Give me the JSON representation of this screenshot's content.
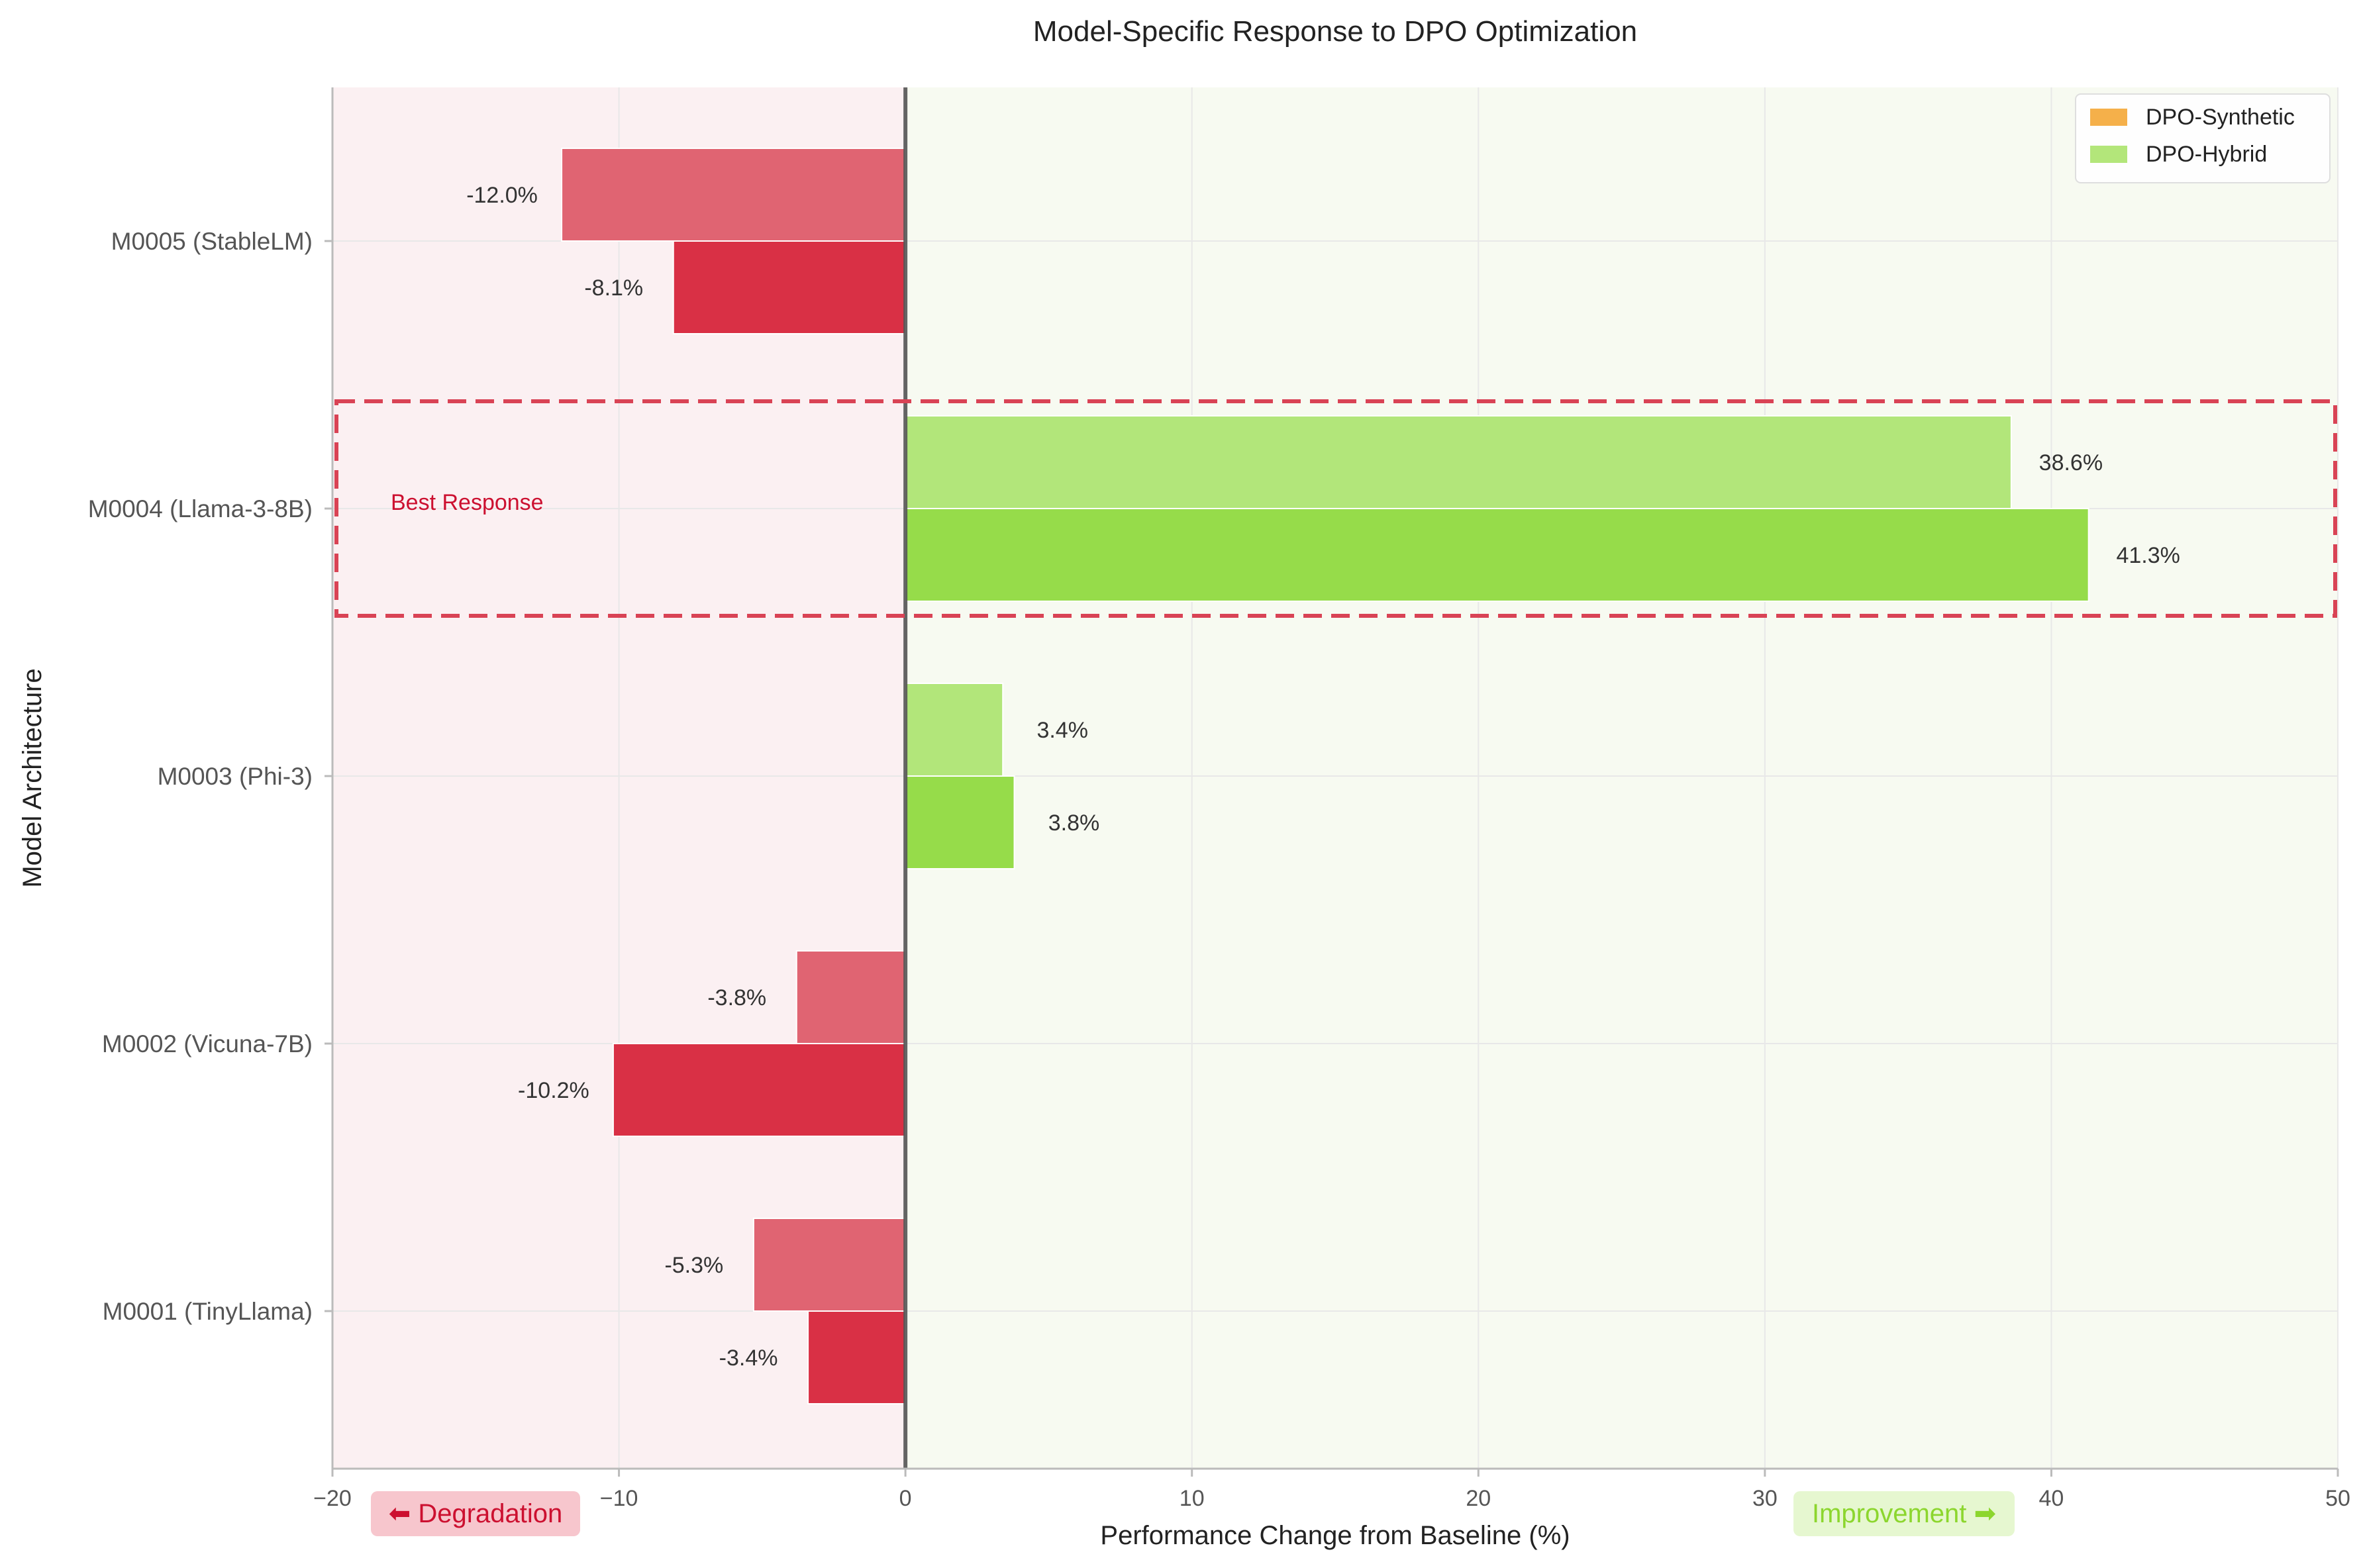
{
  "chart_data": {
    "type": "bar",
    "orientation": "horizontal",
    "title": "Model-Specific Response to DPO Optimization",
    "xlabel": "Performance Change from Baseline (%)",
    "ylabel": "Model Architecture",
    "xlim": [
      -20,
      50
    ],
    "xticks": [
      -20,
      -10,
      0,
      10,
      20,
      30,
      40,
      50
    ],
    "xtick_labels": [
      "−20",
      "−10",
      "0",
      "10",
      "20",
      "30",
      "40",
      "50"
    ],
    "grid": true,
    "legend_position": "top-right",
    "categories": [
      "M0001 (TinyLlama)",
      "M0002 (Vicuna-7B)",
      "M0003 (Phi-3)",
      "M0004 (Llama-3-8B)",
      "M0005 (StableLM)"
    ],
    "series": [
      {
        "name": "DPO-Synthetic",
        "values": [
          -5.3,
          -3.8,
          3.4,
          38.6,
          -12.0
        ],
        "labels": [
          "-5.3%",
          "-3.8%",
          "3.4%",
          "38.6%",
          "-12.0%"
        ],
        "legend_color": "#f5b04a"
      },
      {
        "name": "DPO-Hybrid",
        "values": [
          -3.4,
          -10.2,
          3.8,
          41.3,
          -8.1
        ],
        "labels": [
          "-3.4%",
          "-10.2%",
          "3.8%",
          "41.3%",
          "-8.1%"
        ],
        "legend_color": "#b3e67a"
      }
    ],
    "annotations": {
      "highlight_label": "Best Response",
      "degradation_label": "⬅ Degradation",
      "improvement_label": "Improvement ➡"
    },
    "colors": {
      "negative_synthetic": "#e06472",
      "negative_hybrid": "#d93045",
      "positive_synthetic": "#b2e67a",
      "positive_hybrid": "#96dc4a",
      "degradation_region": "#fbf0f2",
      "improvement_region": "#f7faf1",
      "highlight_box": "#d94355",
      "degradation_text": "#cc1030",
      "improvement_text": "#8cd62e"
    }
  }
}
